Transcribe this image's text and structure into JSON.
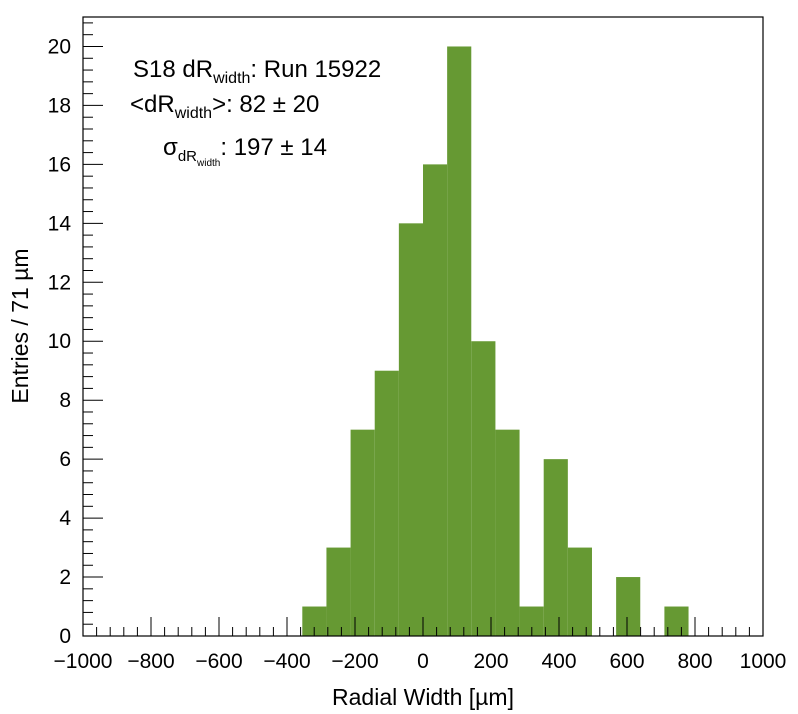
{
  "chart_data": {
    "type": "bar",
    "title": "",
    "xlabel": "Radial Width [µm]",
    "ylabel": "Entries / 71 µm",
    "xlim": [
      -1000,
      1000
    ],
    "ylim": [
      0,
      21
    ],
    "xticks": [
      -1000,
      -800,
      -600,
      -400,
      -200,
      0,
      200,
      400,
      600,
      800,
      1000
    ],
    "yticks": [
      0,
      2,
      4,
      6,
      8,
      10,
      12,
      14,
      16,
      18,
      20
    ],
    "xtick_labels": [
      "−1000",
      "−800",
      "−600",
      "−400",
      "−200",
      "0",
      "200",
      "400",
      "600",
      "800",
      "1000"
    ],
    "ytick_labels": [
      "0",
      "2",
      "4",
      "6",
      "8",
      "10",
      "12",
      "14",
      "16",
      "18",
      "20"
    ],
    "bin_width": 71,
    "bin_start": -355,
    "values": [
      1,
      3,
      7,
      9,
      14,
      16,
      20,
      10,
      7,
      1,
      6,
      3,
      0,
      2,
      0,
      1
    ],
    "bar_color": "#669933",
    "grid": false,
    "annotations": {
      "line1_prefix": "S18 dR",
      "line1_sub": "width",
      "line1_suffix": ": Run 15922",
      "line2_prefix": "<dR",
      "line2_sub": "width",
      "line2_suffix": ">: 82 ± 20",
      "line3_sigma": "σ",
      "line3_sub": "dR",
      "line3_subsub": "width",
      "line3_suffix": ": 197 ± 14"
    }
  }
}
